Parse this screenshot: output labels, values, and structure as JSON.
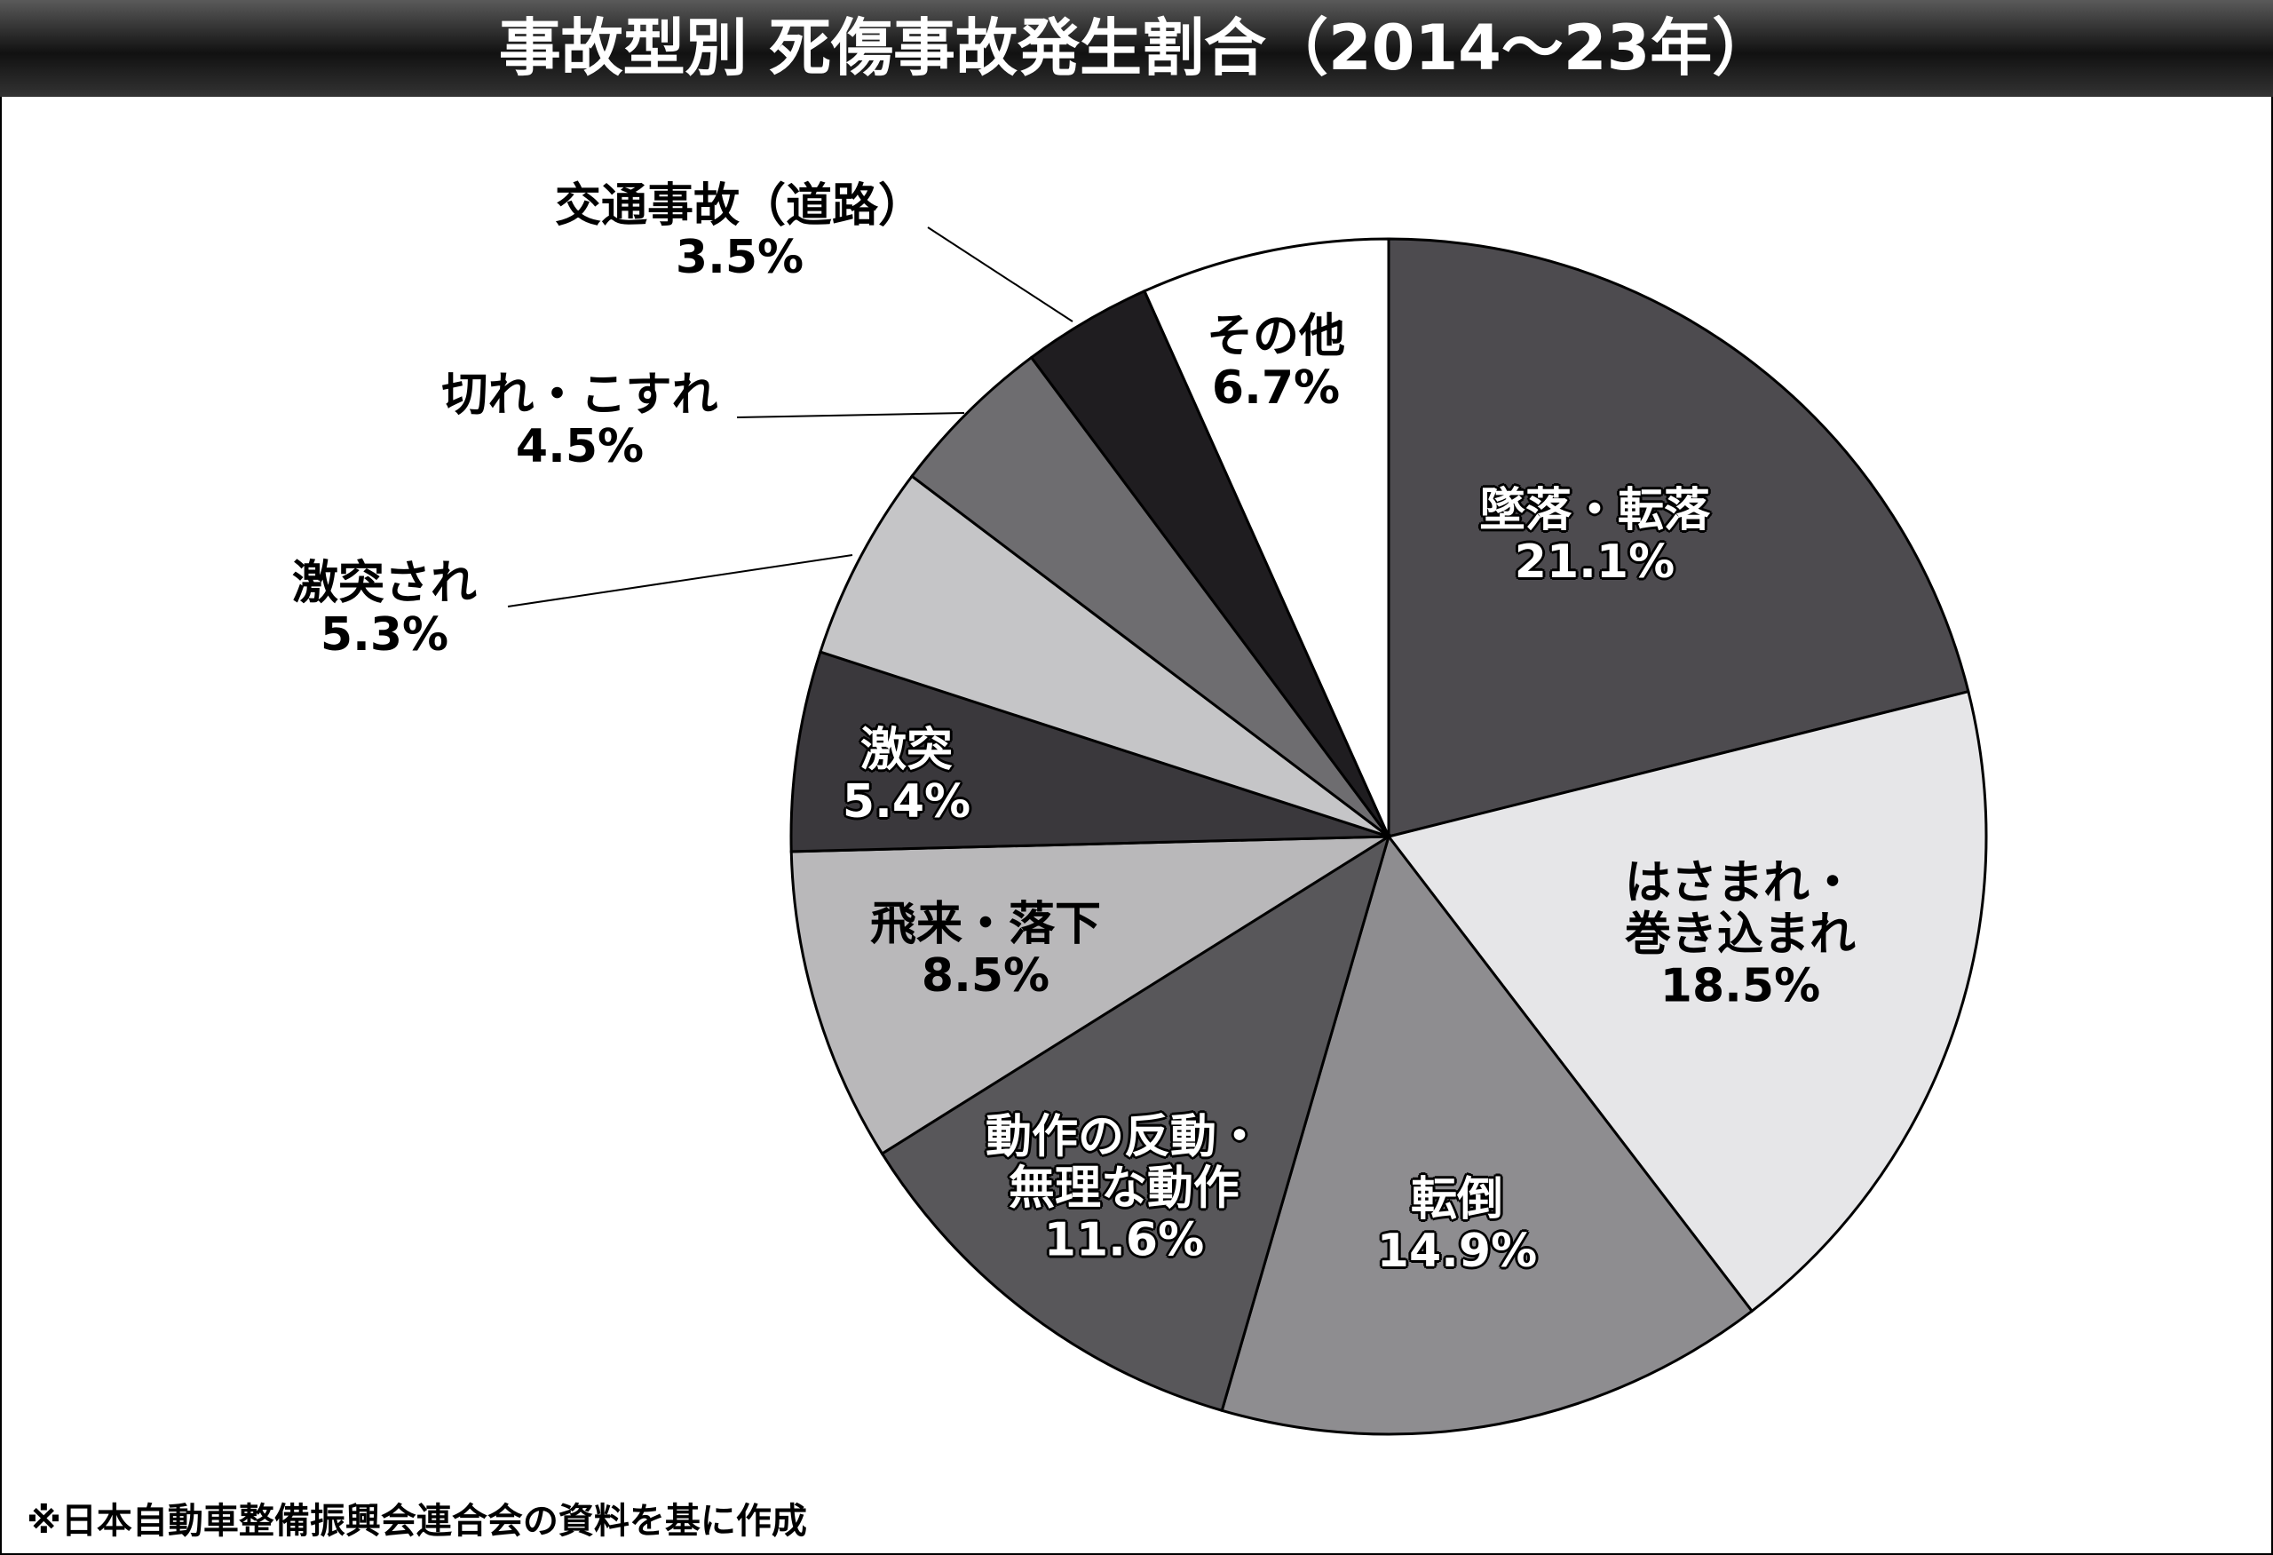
{
  "chart_data": {
    "type": "pie",
    "title": "事故型別 死傷事故発生割合（2014～23年）",
    "categories": [
      "墜落・転落",
      "はさまれ・\n巻き込まれ",
      "転倒",
      "動作の反動・\n無理な動作",
      "飛来・落下",
      "激突",
      "激突され",
      "切れ・こすれ",
      "交通事故（道路）",
      "その他"
    ],
    "values": [
      21.1,
      18.5,
      14.9,
      11.6,
      8.5,
      5.4,
      5.3,
      4.5,
      3.5,
      6.7
    ],
    "value_labels": [
      "21.1%",
      "18.5%",
      "14.9%",
      "11.6%",
      "8.5%",
      "5.4%",
      "5.3%",
      "4.5%",
      "3.5%",
      "6.7%"
    ],
    "colors": [
      "#4d4b4f",
      "#e6e6e8",
      "#8e8d90",
      "#58575a",
      "#b9b8ba",
      "#3a383c",
      "#c5c5c7",
      "#6e6d70",
      "#1f1d20",
      "#ffffff"
    ],
    "note": "※日本自動車整備振興会連合会の資料を基に作成"
  }
}
